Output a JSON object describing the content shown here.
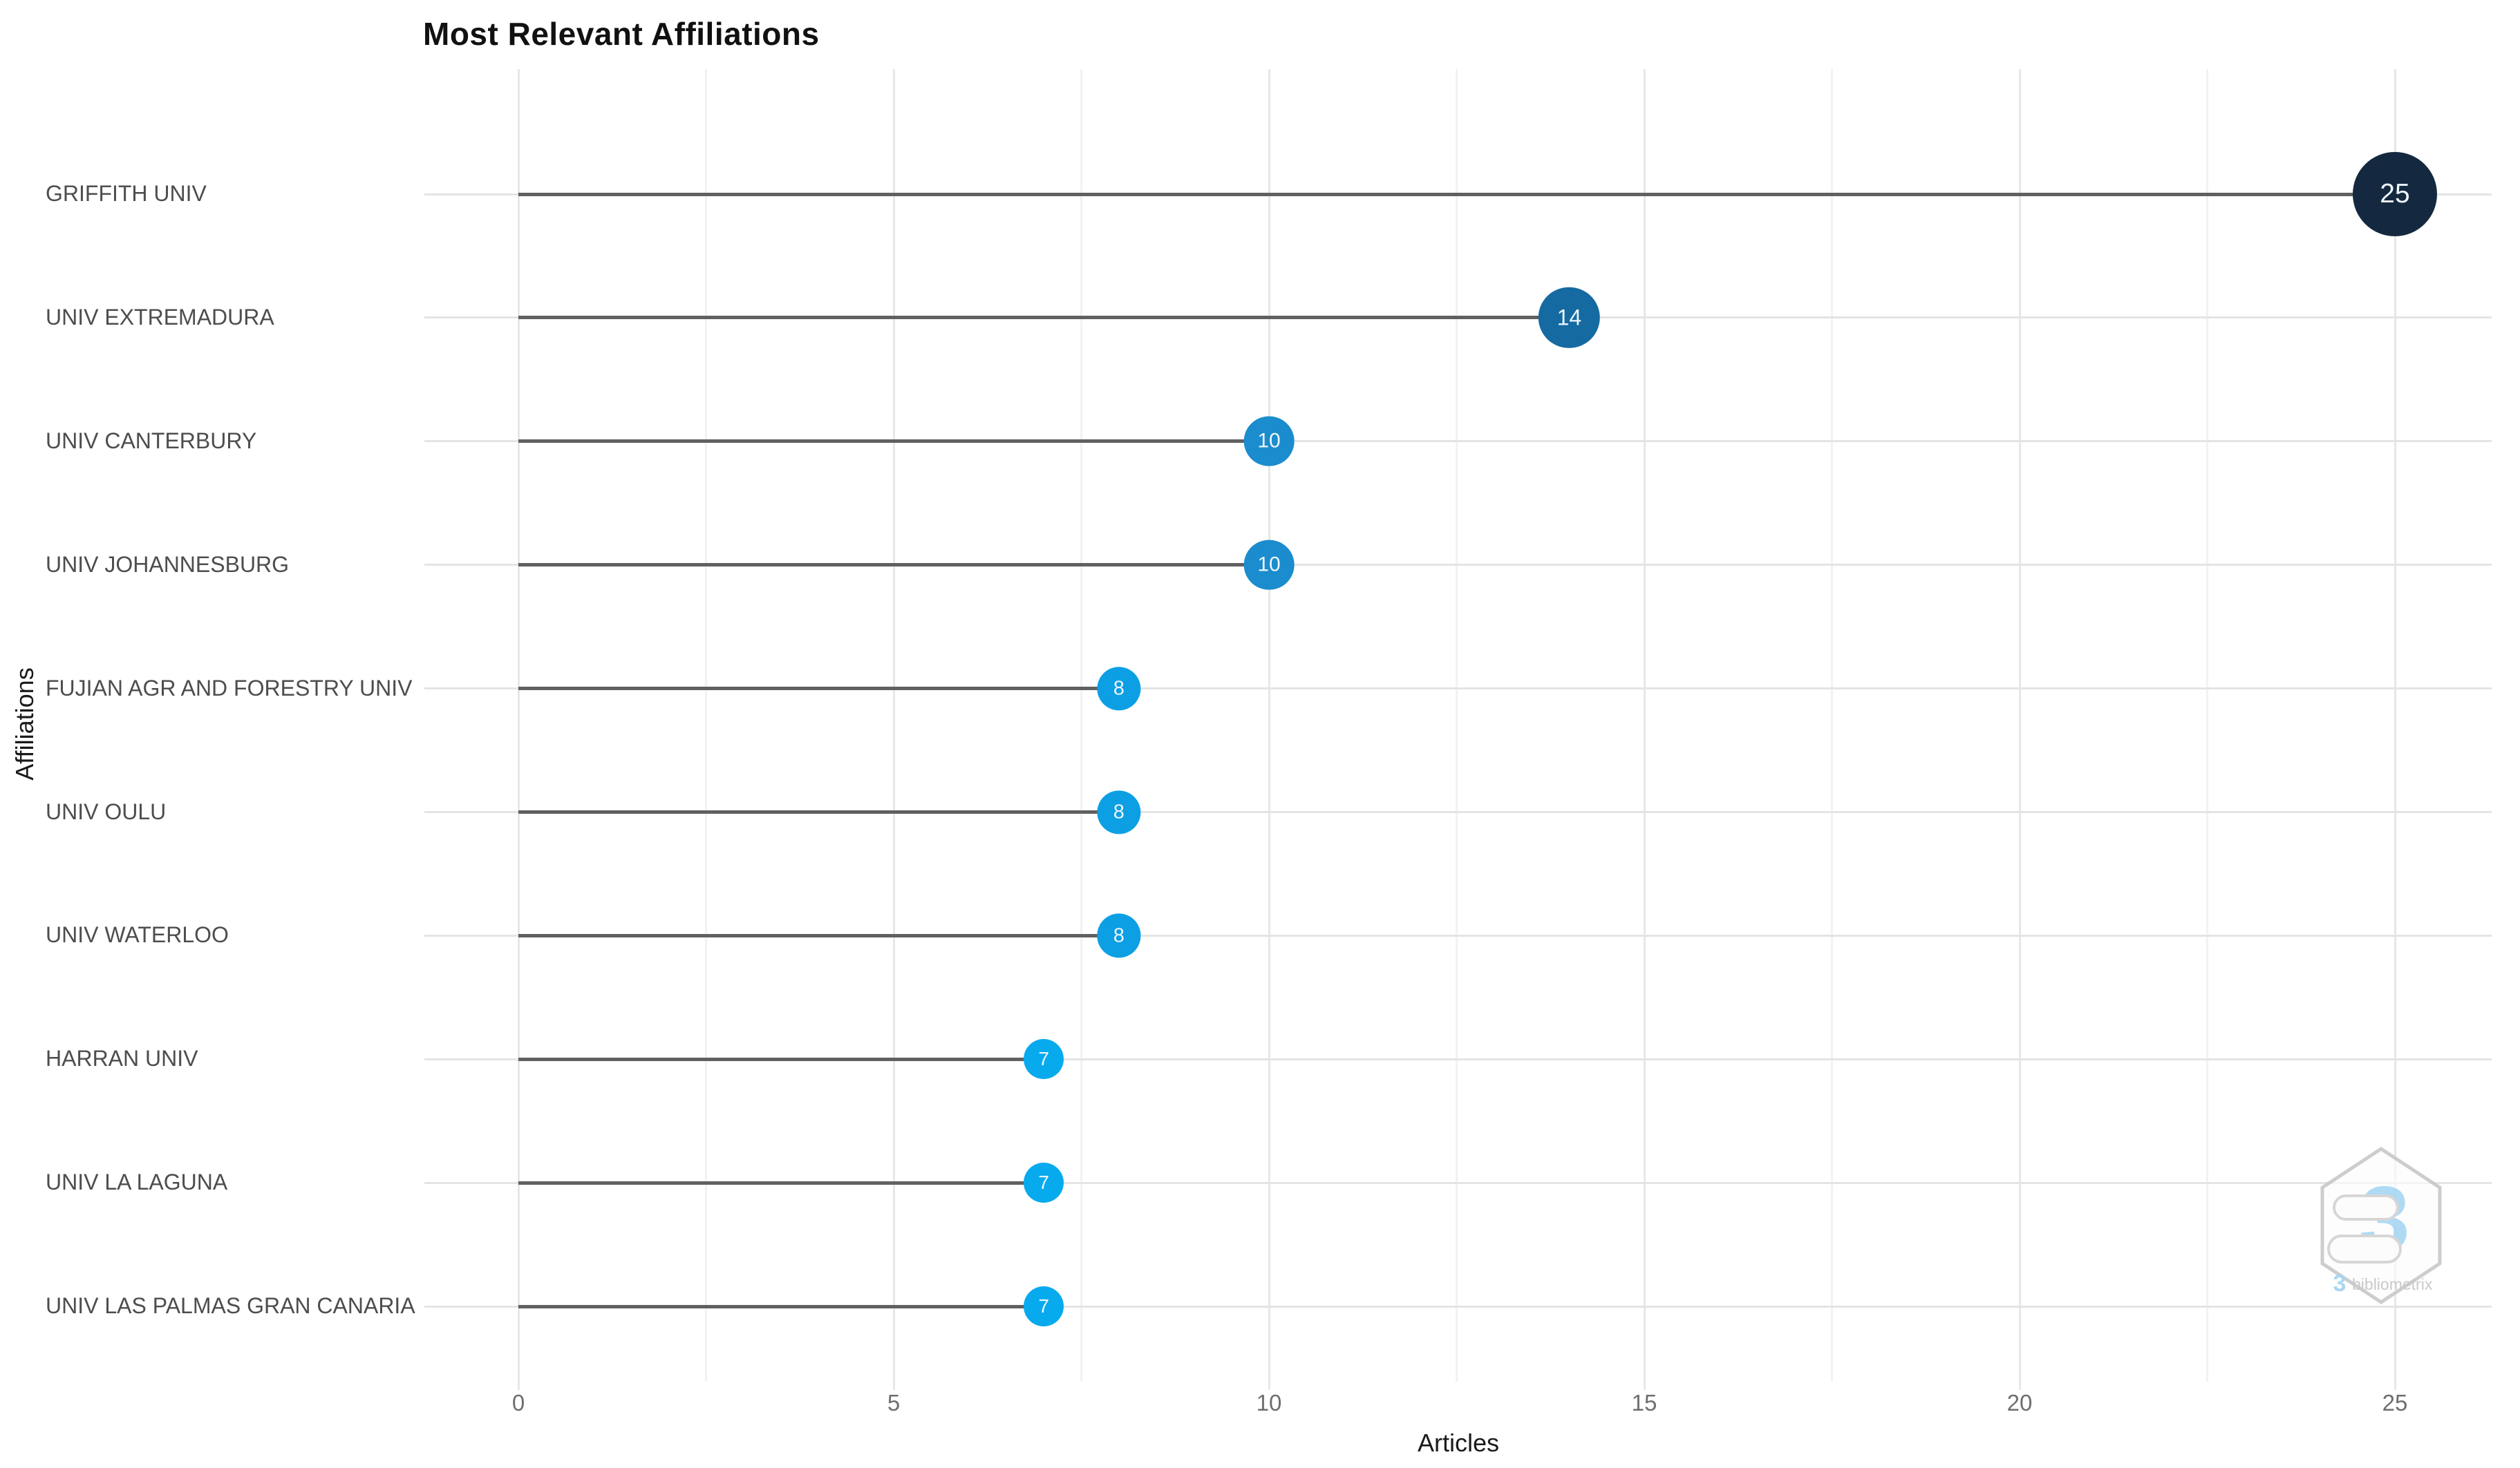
{
  "title": "Most Relevant Affiliations",
  "x_axis": {
    "label": "Articles",
    "ticks": [
      "0",
      "5",
      "10",
      "15",
      "20",
      "25"
    ]
  },
  "y_axis": {
    "label": "Affiliations"
  },
  "watermark": {
    "glyph": "3",
    "text": "bibliometrix"
  },
  "chart_data": {
    "type": "bar",
    "variant": "lollipop",
    "orientation": "horizontal",
    "title": "Most Relevant Affiliations",
    "xlabel": "Articles",
    "ylabel": "Affiliations",
    "xlim": [
      0,
      25
    ],
    "x_major_gridlines": [
      0,
      5,
      10,
      15,
      20,
      25
    ],
    "x_minor_gridlines": [
      2.5,
      7.5,
      12.5,
      17.5,
      22.5
    ],
    "grid": true,
    "legend": false,
    "categories": [
      "GRIFFITH UNIV",
      "UNIV EXTREMADURA",
      "UNIV CANTERBURY",
      "UNIV JOHANNESBURG",
      "FUJIAN AGR AND FORESTRY UNIV",
      "UNIV OULU",
      "UNIV WATERLOO",
      "HARRAN UNIV",
      "UNIV LA LAGUNA",
      "UNIV LAS PALMAS GRAN CANARIA"
    ],
    "values": [
      25,
      14,
      10,
      10,
      8,
      8,
      8,
      7,
      7,
      7
    ],
    "point_colors": [
      "#14293f",
      "#156aa2",
      "#1b8ccd",
      "#1b8ccd",
      "#0c9fe4",
      "#0c9fe4",
      "#0c9fe4",
      "#08aaee",
      "#08aaee",
      "#08aaee"
    ],
    "point_label_color": "#eef6fb",
    "stem_color": "#606060",
    "gridline_color": "#e7e7e7"
  }
}
